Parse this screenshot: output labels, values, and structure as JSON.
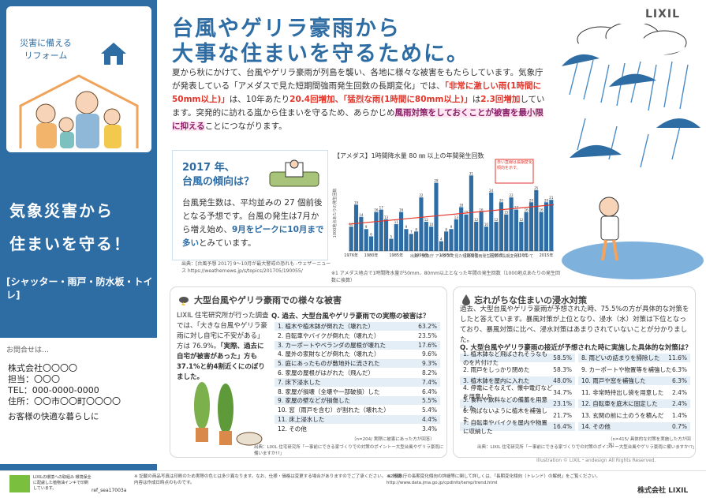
{
  "left": {
    "caption1": "災害に備える",
    "caption2": "リフォーム",
    "title_line1": "気象災害から",
    "title_line2": "住まいを守る！",
    "subtitle": "[シャッター・雨戸・防水板・トイレ]"
  },
  "contact": {
    "title": "お問合せは…",
    "lines": [
      "株式会社〇〇〇〇",
      "担当：〇〇〇",
      "TEL：000-0000-0000",
      "住所：〇〇市〇〇町〇〇〇〇"
    ],
    "message": "お客様の快適な暮らしに"
  },
  "header": {
    "headline1": "台風やゲリラ豪雨から",
    "headline2": "大事な住まいを守るために。",
    "logo": "LIXIL"
  },
  "intro": {
    "p1": "夏から秋にかけて、台風やゲリラ豪雨が列島を襲い、各地に様々な被害をもたらしています。気象庁が発表している「アメダスで見た短期間強雨発生回数の長期変化」では、",
    "r1": "「非常に激しい雨(1時間に50mm以上)」",
    "p2": "は、10年あたり",
    "r2": "20.4回増加、「猛烈な雨(1時間に80mm以上)」",
    "p3": "は",
    "r3": "2.3回増加",
    "p4": "しています。突発的に訪れる嵐から住まいを守るため、あらかじめ",
    "h1": "風雨対策をしておくことが被害を最小限に抑える",
    "p5": "ことにつながります。"
  },
  "box2017": {
    "heading1": "2017 年、",
    "heading2": "台風の傾向は？",
    "t1": "台風発生数は、平均並みの 27 個前後となる予想です。台風の発生は7月から増え始め、",
    "t2": "9月をピークに10月まで多い",
    "t3": "とみています。",
    "source": "出典：[台風予想 2017] 9～10月が最大警戒の恐れも -ウェザーニュース https://weathernews.jp/s/topics/201705/190055/"
  },
  "chart_data": {
    "type": "bar",
    "title": "【アメダス】1時間降水量 80 ㎜ 以上の年間発生回数",
    "ylabel": "1000地点あたりの発生回数",
    "ylim": [
      0,
      35
    ],
    "x": [
      1976,
      1977,
      1978,
      1979,
      1980,
      1981,
      1982,
      1983,
      1984,
      1985,
      1986,
      1987,
      1988,
      1989,
      1990,
      1991,
      1992,
      1993,
      1994,
      1995,
      1996,
      1997,
      1998,
      1999,
      2000,
      2001,
      2002,
      2003,
      2004,
      2005,
      2006,
      2007,
      2008,
      2009,
      2010,
      2011,
      2012,
      2013,
      2014,
      2015,
      2016
    ],
    "values": [
      10,
      19,
      14,
      9,
      6,
      16,
      17,
      13,
      5,
      11,
      16,
      9,
      7,
      8,
      22,
      12,
      10,
      28,
      4,
      8,
      9,
      13,
      18,
      15,
      31,
      12,
      16,
      10,
      24,
      12,
      20,
      15,
      22,
      17,
      12,
      16,
      20,
      25,
      16,
      20,
      21
    ],
    "tick_labels": [
      "1976年",
      "1980年",
      "1985年",
      "1990年",
      "1995年",
      "2000年",
      "2005年",
      "2010年",
      "2015年"
    ],
    "trend": {
      "label": "赤い直線は長期変化傾向を示す。",
      "from": 11,
      "to": 19
    },
    "source": "出典：気象庁 アメダスで見た短期間強雨発生回数の長期変化について",
    "note": "※1 アメダス地点で1時間降水量が50mm、80mm以上となった年間の発生回数（1000地点あたりの発生回数に換算）"
  },
  "bottom_left": {
    "heading": "大型台風やゲリラ豪雨での様々な被害",
    "text1": "LIXIL 住宅研究所が行った調査では、「大きな台風やゲリラ豪雨に対し自宅に不安がある」方は 76.9%。",
    "text2": "「実際、過去に自宅が被害があった」方も 37.1%と約4割近くにのぼりました。",
    "question": "Q. 過去、大型台風やゲリラ豪雨での実際の被害は？",
    "items": [
      {
        "label": "1. 植木や植木鉢が倒れた（壊れた）",
        "value": "63.2%"
      },
      {
        "label": "2. 自転車やバイクが倒れた（壊れた）",
        "value": "23.5%"
      },
      {
        "label": "3. カーポートやベランダの屋根が壊れた",
        "value": "17.6%"
      },
      {
        "label": "4. 屋外の家財などが倒れた（壊れた）",
        "value": "9.6%"
      },
      {
        "label": "5. 庭にあったものが敷地外に流された",
        "value": "9.3%"
      },
      {
        "label": "6. 家屋の屋根がはがれた（飛んだ）",
        "value": "8.2%"
      },
      {
        "label": "7. 床下浸水した",
        "value": "7.4%"
      },
      {
        "label": "8. 家屋が損壊（全壊や一部破損）した",
        "value": "6.4%"
      },
      {
        "label": "9. 家屋の壁などが損傷した",
        "value": "5.5%"
      },
      {
        "label": "10. 窓（雨戸を含む）が割れた（壊れた）",
        "value": "5.4%"
      },
      {
        "label": "11. 床上浸水した",
        "value": "4.4%"
      },
      {
        "label": "12. その他",
        "value": "3.4%"
      }
    ],
    "footnote": "（n=204/ 実際に被害にあった方が回答）",
    "source": "出典：LIXIL 住宅研究所「一事前にできる家づくりでの対策のポイントー大型台風やゲリラ豪雨に備いますか!?」"
  },
  "bottom_right": {
    "heading": "忘れがちな住まいの浸水対策",
    "text": "過去、大型台風やゲリラ豪雨が予想された時、75.5%の方が具体的な対策をしたと答えています。暴風対策が上位となり、浸水（水）対策は下位となっており、暴風対策に比べ、浸水対策はあまりされていないことが分かりました。",
    "question": "Q. 大型台風やゲリラ豪雨の接近が予想された時に実施した具体的な対策は？",
    "left_items": [
      {
        "label": "1. 植木鉢など飛ばされそうなものを片付けた",
        "value": "58.5%"
      },
      {
        "label": "2. 雨戸をしっかり閉めた",
        "value": "58.3%"
      },
      {
        "label": "3. 植木鉢を屋内に入れた",
        "value": "48.0%"
      },
      {
        "label": "4. 停電にそなえて、懐中電灯などを用意した",
        "value": "34.7%"
      },
      {
        "label": "5. 食料や飲料などの備蓄を用意した",
        "value": "23.1%"
      },
      {
        "label": "6. 飛ばないように植木を補強した",
        "value": "21.7%"
      },
      {
        "label": "7. 自転車やバイクを屋内や物置に収納した",
        "value": "16.4%"
      }
    ],
    "right_items": [
      {
        "label": "8. 雨どいの詰まりを掃除した",
        "value": "11.6%"
      },
      {
        "label": "9. カーポートや物置等を補強した",
        "value": "6.3%"
      },
      {
        "label": "10. 雨戸や窓を補強した",
        "value": "6.3%"
      },
      {
        "label": "11. 非常時持出し袋を用意した",
        "value": "2.4%"
      },
      {
        "label": "12. 自転車を庭木に固定した",
        "value": "2.4%"
      },
      {
        "label": "13. 玄関の前に土のうを積んだ",
        "value": "1.4%"
      },
      {
        "label": "14. その他",
        "value": "0.7%"
      }
    ],
    "footnote": "（n=415/ 具体的な対策を実施した方が回答）",
    "source": "出典：LIXIL 住宅研究所「一事前にできる家づくりでの対策のポイントー大型台風やゲリラ豪雨に備いますか!?」"
  },
  "footer": {
    "eco_text": "LIXILの環境への取組み 環境保全に配慮した植物油インキで印刷しています。",
    "ref": "ref_sea17003a",
    "note1": "※ 記載の商品写真は印刷のため実際の色とは多少異なります。なお、仕様・価格は変更する場合がありますのでご了承ください。 ※ 掲載内容は作成日時点のものです。",
    "note2": "※2 気象庁の長期変化傾向の詳細等に関して詳しくは、「長期変化傾向（トレンド）の解説」をご覧ください。 http://www.data.jma.go.jp/cpdinfo/temp/trend.html",
    "credit": "Illustration © LIXIL・andesign All Rights Reserved.",
    "company": "株式会社 LIXIL"
  },
  "colors": {
    "brand_blue": "#2e6ca4",
    "accent_red": "#e2362b",
    "highlight": "#8a1f6a"
  }
}
